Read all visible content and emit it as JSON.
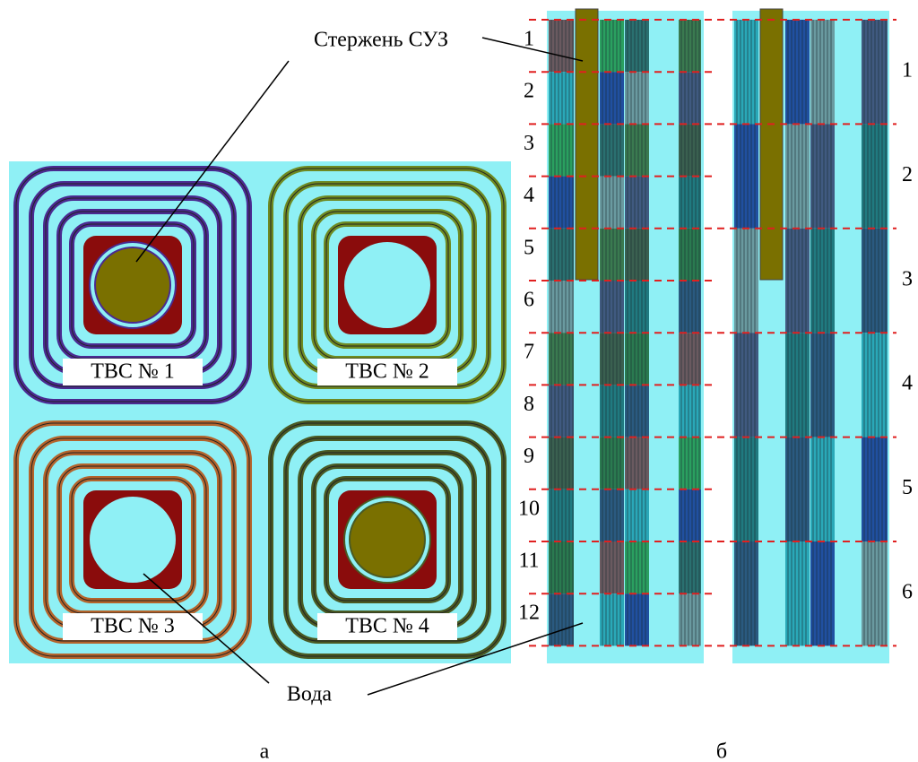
{
  "labels": {
    "rod": "Стержень СУЗ",
    "water": "Вода",
    "caption_a": "а",
    "caption_b": "б"
  },
  "assemblies": [
    "ТВС № 1",
    "ТВС № 2",
    "ТВС № 3",
    "ТВС № 4"
  ],
  "fine_levels": [
    "1",
    "2",
    "3",
    "4",
    "5",
    "6",
    "7",
    "8",
    "9",
    "10",
    "11",
    "12"
  ],
  "coarse_levels": [
    "1",
    "2",
    "3",
    "4",
    "5",
    "6"
  ]
}
